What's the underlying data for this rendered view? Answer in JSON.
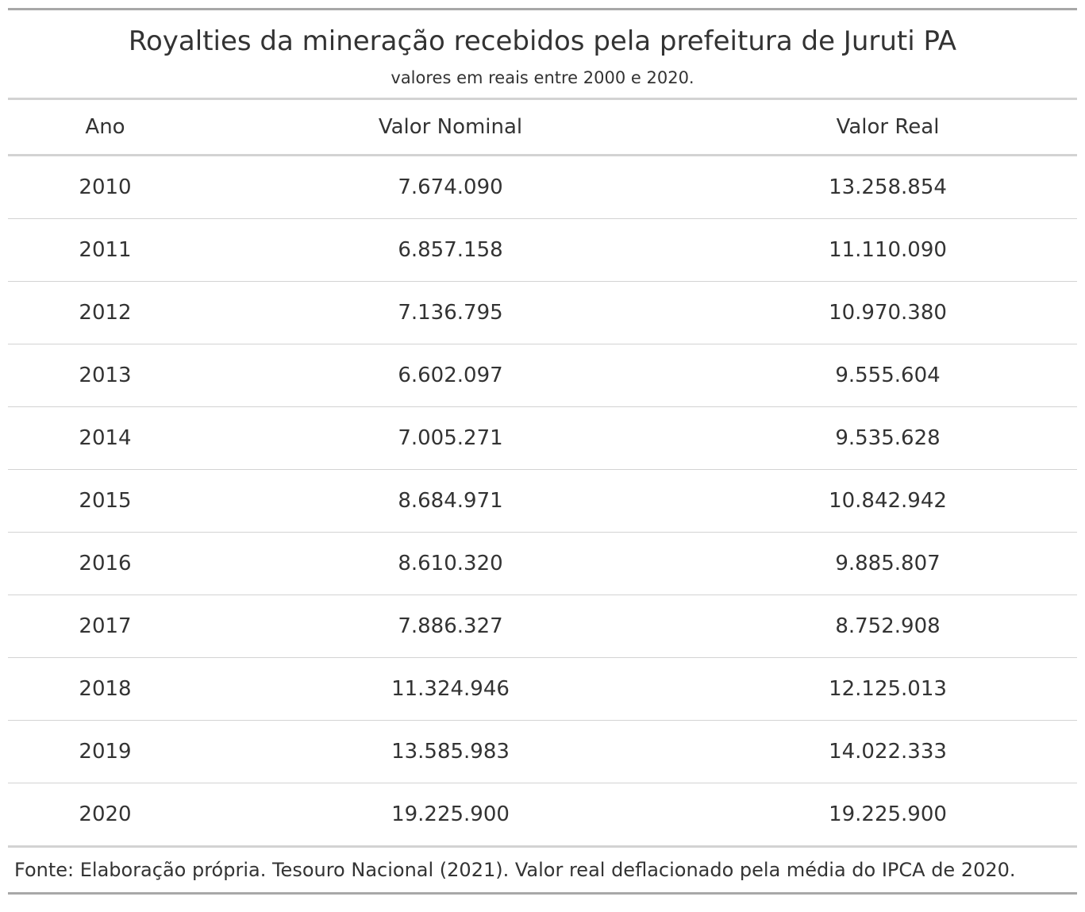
{
  "table": {
    "title": "Royalties da mineração recebidos pela prefeitura de Juruti PA",
    "subtitle": "valores em reais entre 2000 e 2020.",
    "columns": [
      "Ano",
      "Valor Nominal",
      "Valor Real"
    ],
    "rows": [
      [
        "2010",
        "7.674.090",
        "13.258.854"
      ],
      [
        "2011",
        "6.857.158",
        "11.110.090"
      ],
      [
        "2012",
        "7.136.795",
        "10.970.380"
      ],
      [
        "2013",
        "6.602.097",
        "9.555.604"
      ],
      [
        "2014",
        "7.005.271",
        "9.535.628"
      ],
      [
        "2015",
        "8.684.971",
        "10.842.942"
      ],
      [
        "2016",
        "8.610.320",
        "9.885.807"
      ],
      [
        "2017",
        "7.886.327",
        "8.752.908"
      ],
      [
        "2018",
        "11.324.946",
        "12.125.013"
      ],
      [
        "2019",
        "13.585.983",
        "14.022.333"
      ],
      [
        "2020",
        "19.225.900",
        "19.225.900"
      ]
    ],
    "source_note": "Fonte: Elaboração própria. Tesouro Nacional (2021). Valor real deflacionado pela média do IPCA de 2020."
  },
  "colors": {
    "text": "#333333",
    "outer_rule": "#a8a8a8",
    "inner_rule": "#d3d3d3"
  }
}
